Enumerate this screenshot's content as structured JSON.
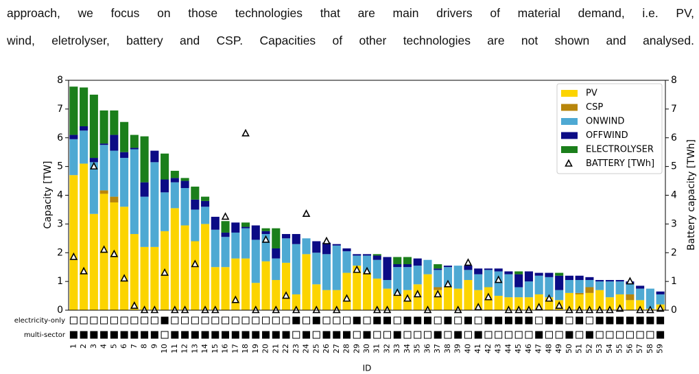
{
  "paragraph": [
    "approach, we focus on those technologies that are main drivers of material demand, i.e. PV,",
    "wind, eletrolyser, battery and CSP. Capacities of other technologies are not shown and analysed."
  ],
  "chart_data": {
    "type": "bar",
    "stacked": true,
    "xlabel": "ID",
    "ylabel": "Capacity [TW]",
    "y2label": "Battery capacity [TWh]",
    "categories": [
      "1",
      "2",
      "3",
      "4",
      "5",
      "6",
      "7",
      "8",
      "9",
      "10",
      "11",
      "12",
      "13",
      "14",
      "15",
      "16",
      "17",
      "18",
      "19",
      "20",
      "21",
      "22",
      "23",
      "24",
      "25",
      "26",
      "27",
      "28",
      "29",
      "30",
      "31",
      "32",
      "33",
      "34",
      "35",
      "36",
      "37",
      "38",
      "39",
      "40",
      "41",
      "42",
      "43",
      "44",
      "45",
      "46",
      "47",
      "48",
      "49",
      "50",
      "51",
      "52",
      "53",
      "54",
      "55",
      "56",
      "57",
      "58",
      "59"
    ],
    "ylim": [
      0,
      8
    ],
    "yticks": [
      0,
      1,
      2,
      3,
      4,
      5,
      6,
      7,
      8
    ],
    "y2lim": [
      0,
      8
    ],
    "y2ticks": [
      0,
      1,
      2,
      3,
      4,
      5,
      6,
      7,
      8
    ],
    "legend": "upper right",
    "series": [
      {
        "name": "PV",
        "color": "#fcd400",
        "values": [
          4.7,
          5.1,
          3.35,
          4.05,
          3.75,
          3.6,
          2.65,
          2.2,
          2.2,
          2.75,
          3.55,
          2.95,
          2.4,
          3.0,
          1.5,
          1.5,
          1.8,
          1.8,
          0.95,
          1.7,
          1.05,
          1.65,
          0.55,
          1.95,
          0.9,
          0.7,
          0.7,
          1.3,
          1.55,
          1.3,
          1.1,
          0.75,
          0.55,
          0.7,
          0.9,
          1.25,
          0.7,
          0.8,
          0.75,
          1.05,
          0.7,
          0.8,
          0.5,
          0.45,
          0.45,
          0.45,
          0.55,
          0.45,
          0.35,
          0.6,
          0.55,
          0.6,
          0.7,
          0.45,
          0.55,
          0.35,
          0.35,
          0.05,
          0.2
        ]
      },
      {
        "name": "CSP",
        "color": "#b8860b",
        "values": [
          0,
          0,
          0,
          0.12,
          0.2,
          0,
          0,
          0,
          0,
          0,
          0,
          0,
          0,
          0,
          0,
          0,
          0,
          0,
          0,
          0,
          0,
          0,
          0,
          0,
          0,
          0,
          0,
          0,
          0,
          0,
          0,
          0,
          0,
          0,
          0,
          0,
          0.1,
          0,
          0,
          0,
          0,
          0,
          0,
          0,
          0,
          0,
          0,
          0,
          0,
          0,
          0.05,
          0.2,
          0,
          0,
          0,
          0.2,
          0,
          0,
          0
        ]
      },
      {
        "name": "ONWIND",
        "color": "#4ea9d3",
        "values": [
          1.25,
          1.15,
          1.8,
          1.58,
          1.6,
          1.7,
          2.95,
          1.75,
          2.95,
          1.35,
          0.9,
          1.3,
          1.1,
          0.6,
          1.3,
          1.05,
          0.9,
          1.05,
          1.5,
          0.95,
          0.75,
          0.85,
          1.75,
          0.55,
          1.1,
          1.25,
          1.55,
          0.75,
          0.35,
          0.6,
          0.65,
          0.3,
          0.95,
          0.8,
          0.65,
          0.5,
          0.6,
          0.7,
          0.8,
          0.35,
          0.55,
          0.6,
          0.85,
          0.8,
          0.35,
          0.55,
          0.65,
          0.7,
          0.35,
          0.45,
          0.45,
          0.25,
          0.3,
          0.55,
          0.45,
          0.35,
          0.4,
          0.7,
          0.35
        ]
      },
      {
        "name": "OFFWIND",
        "color": "#0b0b85",
        "values": [
          0.15,
          0.15,
          0.15,
          0.05,
          0.55,
          0.2,
          0.05,
          0.5,
          0.4,
          0.45,
          0.15,
          0.25,
          0.35,
          0.2,
          0.45,
          0.15,
          0.35,
          0.05,
          0.5,
          0.1,
          0.35,
          0.15,
          0.35,
          0,
          0.4,
          0.4,
          0.05,
          0.1,
          0.05,
          0.05,
          0.15,
          0.8,
          0.1,
          0.1,
          0.25,
          0,
          0.05,
          0.05,
          0,
          0.15,
          0.2,
          0.05,
          0.1,
          0.1,
          0.45,
          0.35,
          0.1,
          0.15,
          0.5,
          0.15,
          0.15,
          0.1,
          0.05,
          0.05,
          0.05,
          0.1,
          0.1,
          0,
          0.1
        ]
      },
      {
        "name": "ELECTROLYSER",
        "color": "#1b7f1b",
        "values": [
          1.68,
          1.35,
          2.2,
          1.15,
          0.85,
          1.05,
          0.45,
          1.6,
          0,
          0.9,
          0.25,
          0.1,
          0.45,
          0.15,
          0,
          0.4,
          0,
          0.15,
          0,
          0.1,
          0.7,
          0,
          0,
          0,
          0,
          0,
          0,
          0,
          0,
          0,
          0.05,
          0,
          0.25,
          0.25,
          0,
          0,
          0.15,
          0,
          0,
          0,
          0,
          0,
          0,
          0,
          0.1,
          0,
          0,
          0,
          0.1,
          0,
          0,
          0,
          0,
          0,
          0,
          0,
          0,
          0,
          0
        ]
      },
      {
        "name": "BATTERY [TWh]",
        "type": "scatter",
        "axis": "y2",
        "color": "#000000",
        "values": [
          1.85,
          1.35,
          5.0,
          2.1,
          1.95,
          1.1,
          0.15,
          0,
          0,
          1.3,
          0,
          0,
          1.6,
          0,
          0,
          3.25,
          0.35,
          6.15,
          0,
          2.45,
          0,
          0.5,
          0,
          3.35,
          0,
          2.4,
          0,
          0.4,
          1.4,
          1.35,
          0,
          0,
          0.6,
          0.4,
          0.55,
          0,
          0.55,
          0.9,
          0,
          1.65,
          0.1,
          0.45,
          1.05,
          0,
          0,
          0,
          0.1,
          0.4,
          0.15,
          0,
          0,
          0,
          0,
          0,
          0.05,
          1.0,
          0,
          0,
          0.05
        ]
      }
    ],
    "indicators": [
      {
        "name": "electricity-only",
        "values": [
          0,
          0,
          0,
          0,
          0,
          0,
          0,
          0,
          0,
          1,
          0,
          0,
          0,
          0,
          0,
          0,
          0,
          0,
          0,
          0,
          0,
          0,
          1,
          0,
          1,
          0,
          0,
          0,
          1,
          0,
          1,
          1,
          0,
          1,
          1,
          1,
          0,
          1,
          0,
          1,
          0,
          1,
          1,
          1,
          1,
          1,
          0,
          1,
          1,
          0,
          1,
          0,
          1,
          1,
          1,
          1,
          1,
          1,
          1
        ]
      },
      {
        "name": "multi-sector",
        "values": [
          1,
          1,
          1,
          1,
          1,
          1,
          1,
          1,
          1,
          0,
          1,
          1,
          1,
          1,
          1,
          1,
          1,
          1,
          1,
          1,
          1,
          1,
          0,
          1,
          0,
          1,
          1,
          1,
          0,
          1,
          0,
          0,
          1,
          0,
          0,
          0,
          1,
          0,
          1,
          0,
          1,
          0,
          0,
          0,
          0,
          0,
          1,
          0,
          0,
          1,
          0,
          1,
          0,
          0,
          0,
          0,
          0,
          0,
          1
        ]
      }
    ]
  }
}
